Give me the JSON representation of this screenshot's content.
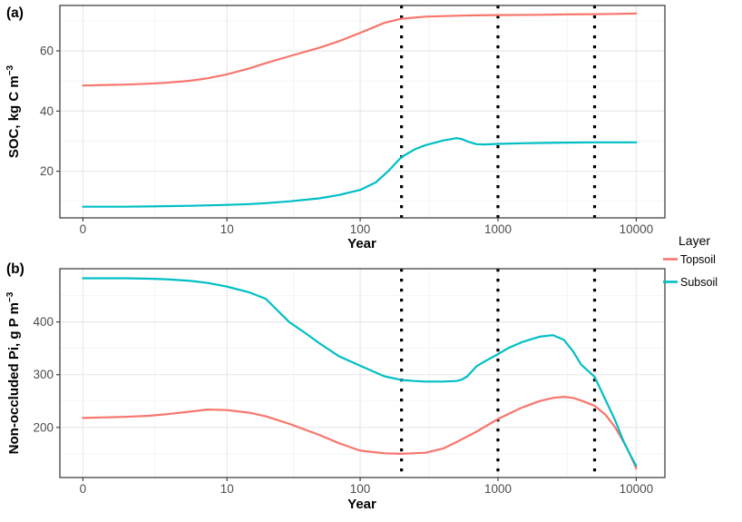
{
  "figure": {
    "kind": "two-panel line chart"
  },
  "panels": {
    "a": {
      "tag": "(a)",
      "xlabel": "Year",
      "ylabel_main": "SOC, kg C m",
      "ylabel_sup": "−3"
    },
    "b": {
      "tag": "(b)",
      "xlabel": "Year",
      "ylabel_main": "Non-occluded Pi, g P m",
      "ylabel_sup": "−3"
    }
  },
  "legend": {
    "title": "Layer",
    "items": [
      {
        "label": "Topsoil",
        "color": "#F8766D"
      },
      {
        "label": "Subsoil",
        "color": "#00BFC4"
      }
    ]
  },
  "chart_data": [
    {
      "type": "line",
      "panel": "a",
      "title": "",
      "xlabel": "Year",
      "ylabel": "SOC, kg C m^-3",
      "x_scale": "log10(x+1)",
      "x_ticks": [
        0,
        10,
        100,
        1000,
        10000
      ],
      "x_tick_labels": [
        "0",
        "10",
        "100",
        "1000",
        "10000"
      ],
      "y_ticks": [
        20,
        40,
        60
      ],
      "y_tick_labels": [
        "20",
        "40",
        "60"
      ],
      "y_minor": [
        10,
        30,
        50,
        70
      ],
      "ylim": [
        4.5,
        75.1
      ],
      "grid": true,
      "legend_position": "right",
      "vlines": [
        200,
        1000,
        5000
      ],
      "vline_style": "dotted",
      "series": [
        {
          "name": "Topsoil",
          "color": "#F8766D",
          "x": [
            0,
            1,
            2,
            3,
            5,
            7,
            10,
            15,
            20,
            30,
            50,
            70,
            100,
            150,
            200,
            300,
            500,
            700,
            1000,
            2000,
            3000,
            5000,
            7000,
            10000
          ],
          "y": [
            48.5,
            48.8,
            49.1,
            49.4,
            50.1,
            50.9,
            52.2,
            54.2,
            55.9,
            58.2,
            61.0,
            63.2,
            66.0,
            69.3,
            70.7,
            71.4,
            71.7,
            71.8,
            71.9,
            72.0,
            72.1,
            72.2,
            72.3,
            72.4
          ]
        },
        {
          "name": "Subsoil",
          "color": "#00BFC4",
          "x": [
            0,
            1,
            2,
            5,
            10,
            15,
            20,
            30,
            50,
            70,
            100,
            130,
            160,
            200,
            250,
            300,
            400,
            500,
            550,
            600,
            700,
            800,
            1000,
            1500,
            2000,
            3000,
            5000,
            10000
          ],
          "y": [
            8.2,
            8.2,
            8.3,
            8.5,
            8.8,
            9.1,
            9.4,
            10.0,
            11.0,
            12.1,
            13.8,
            16.3,
            20.0,
            24.7,
            27.3,
            28.7,
            30.2,
            31.0,
            30.7,
            29.9,
            29.0,
            28.9,
            29.1,
            29.3,
            29.4,
            29.5,
            29.6,
            29.6
          ]
        }
      ]
    },
    {
      "type": "line",
      "panel": "b",
      "title": "",
      "xlabel": "Year",
      "ylabel": "Non-occluded Pi, g P m^-3",
      "x_scale": "log10(x+1)",
      "x_ticks": [
        0,
        10,
        100,
        1000,
        10000
      ],
      "x_tick_labels": [
        "0",
        "10",
        "100",
        "1000",
        "10000"
      ],
      "y_ticks": [
        200,
        300,
        400
      ],
      "y_tick_labels": [
        "200",
        "300",
        "400"
      ],
      "y_minor": [
        150,
        250,
        350,
        450
      ],
      "ylim": [
        105,
        501
      ],
      "grid": true,
      "legend_position": "right",
      "vlines": [
        200,
        1000,
        5000
      ],
      "vline_style": "dotted",
      "series": [
        {
          "name": "Topsoil",
          "color": "#F8766D",
          "x": [
            0,
            1,
            2,
            3,
            5,
            7,
            10,
            15,
            20,
            30,
            50,
            70,
            100,
            150,
            200,
            300,
            400,
            500,
            700,
            1000,
            1500,
            2000,
            2500,
            3000,
            3500,
            4000,
            5000,
            6000,
            7000,
            8000,
            9000,
            10000
          ],
          "y": [
            218,
            220,
            222,
            225,
            230,
            234,
            233,
            228,
            221,
            207,
            186,
            170,
            156,
            151,
            150,
            152,
            160,
            172,
            192,
            216,
            238,
            250,
            256,
            258,
            256,
            251,
            241,
            224,
            201,
            175,
            150,
            122
          ]
        },
        {
          "name": "Subsoil",
          "color": "#00BFC4",
          "x": [
            0,
            1,
            2,
            3,
            5,
            7,
            10,
            15,
            20,
            30,
            40,
            50,
            70,
            100,
            150,
            200,
            250,
            300,
            400,
            500,
            550,
            600,
            700,
            800,
            1000,
            1200,
            1500,
            2000,
            2500,
            3000,
            3500,
            4000,
            4500,
            5000,
            6000,
            7000,
            8000,
            9000,
            10000
          ],
          "y": [
            483,
            483,
            482,
            481,
            478,
            474,
            467,
            456,
            444,
            400,
            378,
            360,
            335,
            317,
            297,
            290,
            288,
            287,
            287,
            288,
            291,
            297,
            316,
            325,
            339,
            351,
            362,
            372,
            375,
            366,
            344,
            319,
            307,
            296,
            252,
            215,
            177,
            149,
            127
          ]
        }
      ]
    }
  ]
}
